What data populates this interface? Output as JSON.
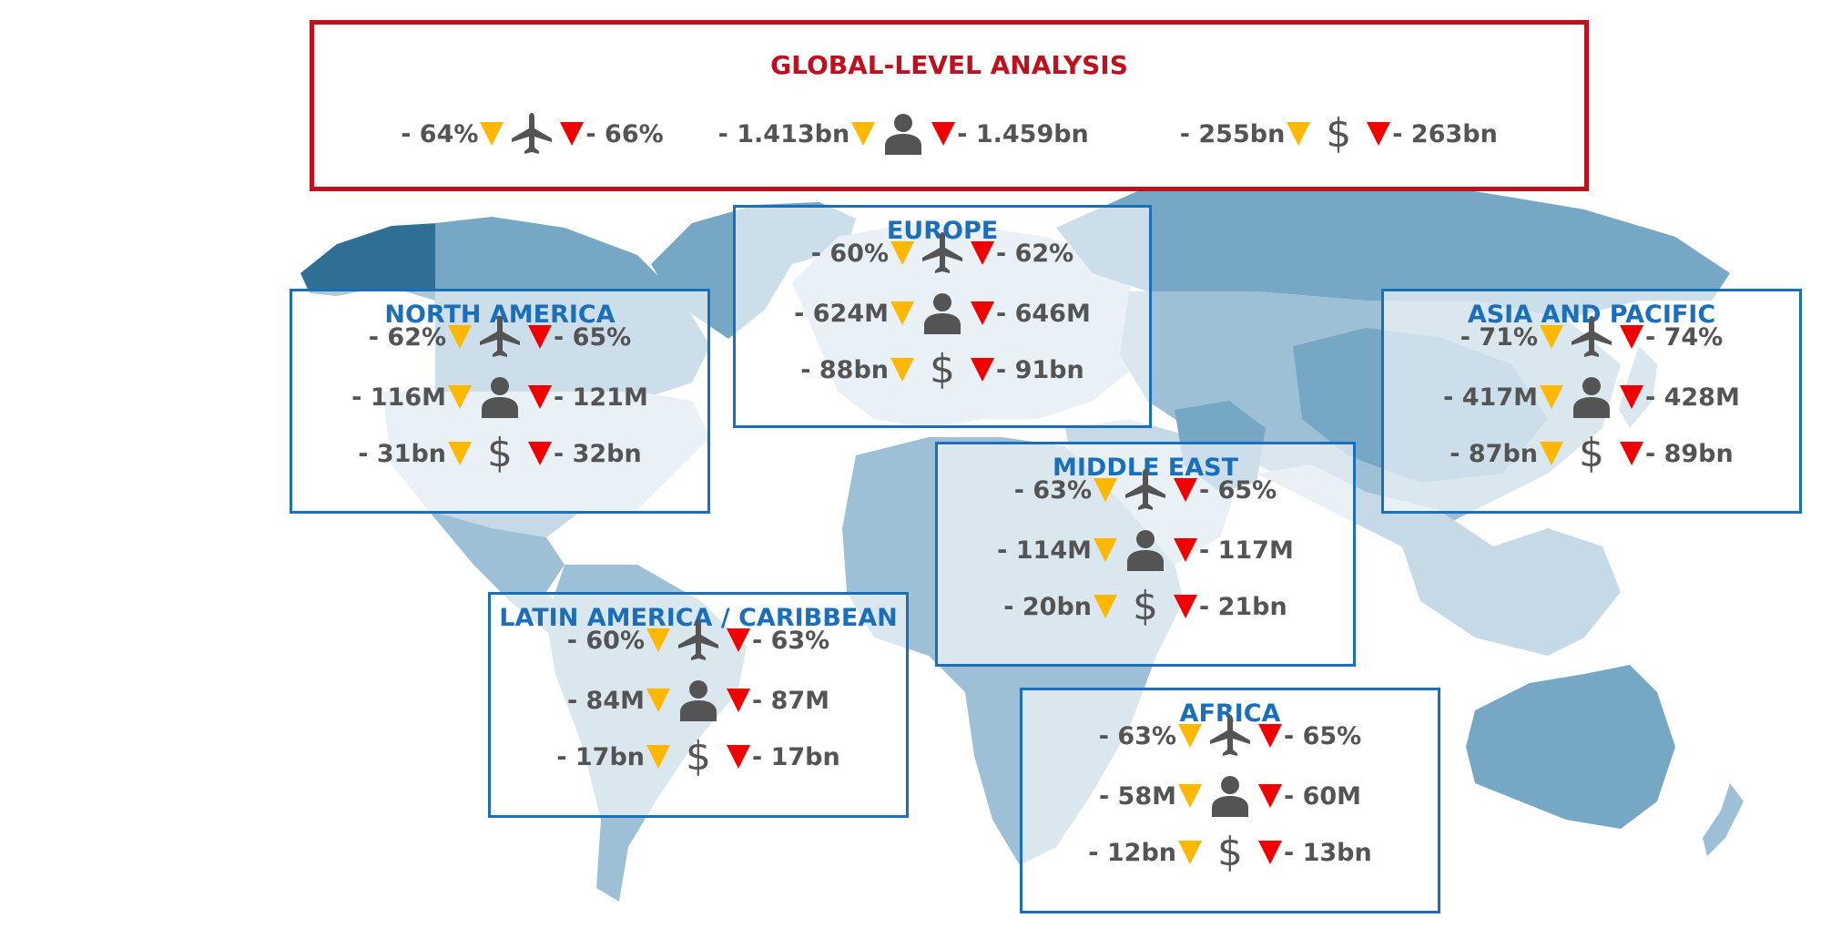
{
  "colors": {
    "global_border": "#c0101e",
    "region_border": "#1b6fba",
    "value_text": "#545454",
    "decline_amber": "#ffb800",
    "decline_red": "#f00000",
    "map_dark": "#2e6f93",
    "map_mid": "#76a8c6",
    "map_light": "#c5d9e6"
  },
  "icons": [
    "plane-icon",
    "person-icon",
    "dollar-icon"
  ],
  "global": {
    "title": "GLOBAL-LEVEL ANALYSIS",
    "seats": {
      "low": "- 64%",
      "high": "- 66%"
    },
    "passengers": {
      "low": "- 1.413bn",
      "high": "- 1.459bn"
    },
    "revenue": {
      "low": "- 255bn",
      "high": "- 263bn"
    }
  },
  "regions": {
    "europe": {
      "title": "EUROPE",
      "seats": {
        "low": "- 60%",
        "high": "- 62%"
      },
      "passengers": {
        "low": "- 624M",
        "high": "- 646M"
      },
      "revenue": {
        "low": "- 88bn",
        "high": "- 91bn"
      }
    },
    "north_america": {
      "title": "NORTH AMERICA",
      "seats": {
        "low": "- 62%",
        "high": "- 65%"
      },
      "passengers": {
        "low": "- 116M",
        "high": "- 121M"
      },
      "revenue": {
        "low": "- 31bn",
        "high": "- 32bn"
      }
    },
    "asia_pacific": {
      "title": "ASIA AND PACIFIC",
      "seats": {
        "low": "- 71%",
        "high": "- 74%"
      },
      "passengers": {
        "low": "- 417M",
        "high": "- 428M"
      },
      "revenue": {
        "low": "- 87bn",
        "high": "- 89bn"
      }
    },
    "middle_east": {
      "title": "MIDDLE EAST",
      "seats": {
        "low": "- 63%",
        "high": "- 65%"
      },
      "passengers": {
        "low": "- 114M",
        "high": "- 117M"
      },
      "revenue": {
        "low": "- 20bn",
        "high": "- 21bn"
      }
    },
    "latin_america": {
      "title": "LATIN AMERICA / CARIBBEAN",
      "seats": {
        "low": "- 60%",
        "high": "- 63%"
      },
      "passengers": {
        "low": "- 84M",
        "high": "- 87M"
      },
      "revenue": {
        "low": "- 17bn",
        "high": "- 17bn"
      }
    },
    "africa": {
      "title": "AFRICA",
      "seats": {
        "low": "- 63%",
        "high": "- 65%"
      },
      "passengers": {
        "low": "- 58M",
        "high": "- 60M"
      },
      "revenue": {
        "low": "- 12bn",
        "high": "- 13bn"
      }
    }
  }
}
